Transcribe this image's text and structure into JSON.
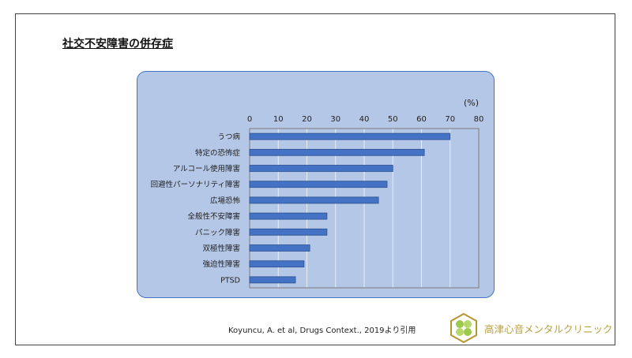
{
  "title": "社交不安障害の併存症",
  "citation": "Koyuncu, A. et al, Drugs Context., 2019より引用",
  "clinic_name": "高津心音メンタルクリニック",
  "colors": {
    "panel": "#b4c7e7",
    "bar": "#4472c4",
    "bar_border": "#2f528f",
    "clinic": "#b8a040"
  },
  "chart_data": {
    "type": "bar",
    "orientation": "horizontal",
    "unit_label": "(%)",
    "categories": [
      "うつ病",
      "特定の恐怖症",
      "アルコール使用障害",
      "回避性パーソナリティ障害",
      "広場恐怖",
      "全般性不安障害",
      "パニック障害",
      "双極性障害",
      "強迫性障害",
      "PTSD"
    ],
    "values": [
      70,
      61,
      50,
      48,
      45,
      27,
      27,
      21,
      19,
      16
    ],
    "xlim": [
      0,
      80
    ],
    "xticks": [
      "0",
      "10",
      "20",
      "30",
      "40",
      "50",
      "60",
      "70",
      "80"
    ],
    "grid": true,
    "xaxis_position": "top"
  }
}
